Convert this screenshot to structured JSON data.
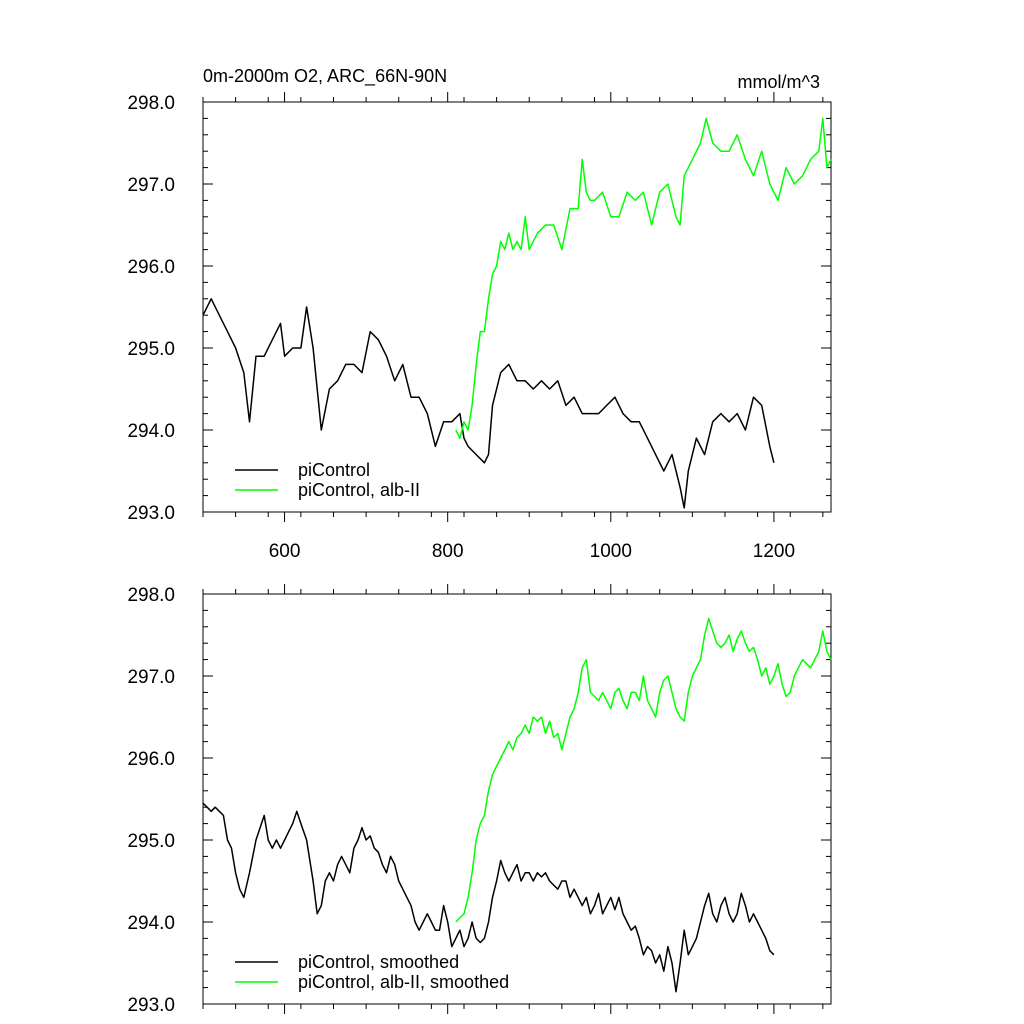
{
  "chart_data": [
    {
      "type": "line",
      "title": "0m-2000m O2, ARC_66N-90N",
      "units": "mmol/m^3",
      "xlim": [
        500,
        1270
      ],
      "ylim": [
        293.0,
        298.0
      ],
      "x_ticks": [
        600,
        800,
        1000,
        1200
      ],
      "y_ticks": [
        "293.0",
        "294.0",
        "295.0",
        "296.0",
        "297.0",
        "298.0"
      ],
      "legend_position": "bottom-left",
      "series": [
        {
          "name": "piControl",
          "color": "#000000",
          "x": [
            500,
            510,
            520,
            530,
            540,
            550,
            557,
            565,
            575,
            585,
            595,
            600,
            610,
            620,
            627,
            635,
            645,
            655,
            665,
            675,
            685,
            695,
            705,
            715,
            725,
            735,
            745,
            755,
            765,
            775,
            785,
            795,
            805,
            815,
            820,
            825,
            835,
            845,
            850,
            855,
            865,
            875,
            885,
            895,
            905,
            915,
            925,
            935,
            945,
            955,
            965,
            975,
            985,
            995,
            1005,
            1015,
            1025,
            1035,
            1045,
            1055,
            1065,
            1075,
            1085,
            1090,
            1095,
            1105,
            1115,
            1125,
            1135,
            1145,
            1155,
            1165,
            1175,
            1185,
            1195,
            1200
          ],
          "values": [
            295.4,
            295.6,
            295.4,
            295.2,
            295.0,
            294.7,
            294.1,
            294.9,
            294.9,
            295.1,
            295.3,
            294.9,
            295.0,
            295.0,
            295.5,
            295.0,
            294.0,
            294.5,
            294.6,
            294.8,
            294.8,
            294.7,
            295.2,
            295.1,
            294.9,
            294.6,
            294.8,
            294.4,
            294.4,
            294.2,
            293.8,
            294.1,
            294.1,
            294.2,
            293.9,
            293.8,
            293.7,
            293.6,
            293.7,
            294.3,
            294.7,
            294.8,
            294.6,
            294.6,
            294.5,
            294.6,
            294.5,
            294.6,
            294.3,
            294.4,
            294.2,
            294.2,
            294.2,
            294.3,
            294.4,
            294.2,
            294.1,
            294.1,
            293.9,
            293.7,
            293.5,
            293.7,
            293.3,
            293.05,
            293.5,
            293.9,
            293.7,
            294.1,
            294.2,
            294.1,
            294.2,
            294.0,
            294.4,
            294.3,
            293.8,
            293.6
          ]
        },
        {
          "name": "piControl, alb-II",
          "color": "#00ff00",
          "x": [
            810,
            815,
            820,
            825,
            830,
            835,
            840,
            845,
            850,
            855,
            860,
            865,
            870,
            875,
            880,
            885,
            890,
            895,
            900,
            910,
            920,
            930,
            940,
            950,
            960,
            965,
            970,
            975,
            980,
            990,
            1000,
            1010,
            1020,
            1030,
            1040,
            1050,
            1060,
            1070,
            1080,
            1085,
            1090,
            1100,
            1110,
            1117,
            1125,
            1135,
            1145,
            1155,
            1165,
            1175,
            1185,
            1195,
            1205,
            1215,
            1225,
            1235,
            1245,
            1255,
            1260,
            1265,
            1270
          ],
          "values": [
            294.0,
            293.9,
            294.1,
            294.0,
            294.3,
            294.8,
            295.2,
            295.2,
            295.6,
            295.9,
            296.0,
            296.3,
            296.2,
            296.4,
            296.2,
            296.3,
            296.2,
            296.6,
            296.2,
            296.4,
            296.5,
            296.5,
            296.2,
            296.7,
            296.7,
            297.3,
            296.9,
            296.8,
            296.8,
            296.9,
            296.6,
            296.6,
            296.9,
            296.8,
            296.9,
            296.5,
            296.9,
            297.0,
            296.6,
            296.5,
            297.1,
            297.3,
            297.5,
            297.8,
            297.5,
            297.4,
            297.4,
            297.6,
            297.3,
            297.1,
            297.4,
            297.0,
            296.8,
            297.2,
            297.0,
            297.1,
            297.3,
            297.4,
            297.8,
            297.2,
            297.3
          ]
        }
      ]
    },
    {
      "type": "line",
      "title": "",
      "xlim": [
        500,
        1270
      ],
      "ylim": [
        293.0,
        298.0
      ],
      "x_ticks": [
        600,
        800,
        1000,
        1200
      ],
      "y_ticks": [
        "293.0",
        "294.0",
        "295.0",
        "296.0",
        "297.0",
        "298.0"
      ],
      "legend_position": "bottom-left",
      "series": [
        {
          "name": "piControl, smoothed",
          "color": "#000000",
          "x": [
            500,
            505,
            510,
            515,
            520,
            525,
            530,
            535,
            540,
            545,
            550,
            557,
            565,
            575,
            580,
            585,
            590,
            595,
            600,
            605,
            610,
            615,
            620,
            627,
            635,
            640,
            645,
            650,
            655,
            660,
            665,
            670,
            675,
            680,
            685,
            690,
            695,
            700,
            705,
            710,
            715,
            720,
            725,
            730,
            735,
            740,
            745,
            750,
            755,
            760,
            765,
            770,
            775,
            780,
            785,
            790,
            795,
            800,
            805,
            810,
            815,
            820,
            825,
            830,
            835,
            840,
            845,
            850,
            855,
            860,
            865,
            870,
            875,
            880,
            885,
            890,
            895,
            900,
            905,
            910,
            915,
            920,
            925,
            930,
            935,
            940,
            945,
            950,
            955,
            960,
            965,
            970,
            975,
            980,
            985,
            990,
            995,
            1000,
            1005,
            1010,
            1015,
            1020,
            1025,
            1030,
            1035,
            1040,
            1045,
            1050,
            1055,
            1060,
            1065,
            1070,
            1075,
            1080,
            1085,
            1090,
            1095,
            1100,
            1105,
            1110,
            1115,
            1120,
            1125,
            1130,
            1135,
            1140,
            1145,
            1150,
            1155,
            1160,
            1165,
            1170,
            1175,
            1180,
            1185,
            1190,
            1195,
            1200
          ],
          "values": [
            295.45,
            295.4,
            295.35,
            295.4,
            295.35,
            295.3,
            295.0,
            294.9,
            294.6,
            294.4,
            294.3,
            294.6,
            295.0,
            295.3,
            295.0,
            294.9,
            295.0,
            294.9,
            295.0,
            295.1,
            295.2,
            295.35,
            295.2,
            295.0,
            294.5,
            294.1,
            294.2,
            294.5,
            294.6,
            294.5,
            294.7,
            294.8,
            294.7,
            294.6,
            294.9,
            295.0,
            295.15,
            295.0,
            295.05,
            294.9,
            294.85,
            294.7,
            294.6,
            294.8,
            294.7,
            294.5,
            294.4,
            294.3,
            294.2,
            294.0,
            293.9,
            294.0,
            294.1,
            294.0,
            293.9,
            293.9,
            294.2,
            294.0,
            293.7,
            293.8,
            293.9,
            293.7,
            293.8,
            294.0,
            293.8,
            293.75,
            293.8,
            294.0,
            294.3,
            294.5,
            294.75,
            294.6,
            294.5,
            294.6,
            294.7,
            294.5,
            294.6,
            294.6,
            294.5,
            294.6,
            294.55,
            294.6,
            294.5,
            294.45,
            294.4,
            294.5,
            294.5,
            294.3,
            294.4,
            294.3,
            294.2,
            294.3,
            294.1,
            294.2,
            294.35,
            294.1,
            294.2,
            294.3,
            294.15,
            294.3,
            294.1,
            294.0,
            293.9,
            293.95,
            293.8,
            293.6,
            293.7,
            293.65,
            293.5,
            293.6,
            293.4,
            293.7,
            293.5,
            293.15,
            293.5,
            293.9,
            293.6,
            293.7,
            293.8,
            294.0,
            294.2,
            294.35,
            294.1,
            294.0,
            294.2,
            294.3,
            294.1,
            294.0,
            294.1,
            294.35,
            294.2,
            294.0,
            294.1,
            294.0,
            293.9,
            293.8,
            293.65,
            293.6
          ]
        },
        {
          "name": "piControl, alb-II, smoothed",
          "color": "#00ff00",
          "x": [
            810,
            815,
            820,
            825,
            830,
            835,
            840,
            845,
            850,
            855,
            860,
            865,
            870,
            875,
            880,
            885,
            890,
            895,
            900,
            905,
            910,
            915,
            920,
            925,
            930,
            935,
            940,
            945,
            950,
            955,
            960,
            965,
            970,
            975,
            980,
            985,
            990,
            995,
            1000,
            1005,
            1010,
            1015,
            1020,
            1025,
            1030,
            1035,
            1040,
            1045,
            1050,
            1055,
            1060,
            1065,
            1070,
            1075,
            1080,
            1085,
            1090,
            1095,
            1100,
            1105,
            1110,
            1115,
            1120,
            1125,
            1130,
            1135,
            1140,
            1145,
            1150,
            1155,
            1160,
            1165,
            1170,
            1175,
            1180,
            1185,
            1190,
            1195,
            1200,
            1205,
            1210,
            1215,
            1220,
            1225,
            1230,
            1235,
            1240,
            1245,
            1250,
            1255,
            1260,
            1265,
            1270
          ],
          "values": [
            294.0,
            294.05,
            294.1,
            294.3,
            294.6,
            295.0,
            295.2,
            295.3,
            295.6,
            295.8,
            295.9,
            296.0,
            296.1,
            296.2,
            296.1,
            296.25,
            296.3,
            296.4,
            296.3,
            296.5,
            296.45,
            296.5,
            296.3,
            296.45,
            296.25,
            296.3,
            296.1,
            296.3,
            296.5,
            296.6,
            296.8,
            297.1,
            297.2,
            296.8,
            296.75,
            296.7,
            296.8,
            296.7,
            296.6,
            296.8,
            296.85,
            296.7,
            296.6,
            296.8,
            296.8,
            296.7,
            297.0,
            296.7,
            296.6,
            296.5,
            296.8,
            296.95,
            297.0,
            296.8,
            296.6,
            296.5,
            296.45,
            296.8,
            297.0,
            297.1,
            297.2,
            297.5,
            297.7,
            297.55,
            297.4,
            297.35,
            297.4,
            297.5,
            297.3,
            297.45,
            297.55,
            297.4,
            297.3,
            297.35,
            297.2,
            297.0,
            297.1,
            296.9,
            297.0,
            297.15,
            296.9,
            296.75,
            296.8,
            297.0,
            297.1,
            297.2,
            297.15,
            297.1,
            297.2,
            297.3,
            297.55,
            297.3,
            297.2
          ]
        }
      ]
    }
  ]
}
